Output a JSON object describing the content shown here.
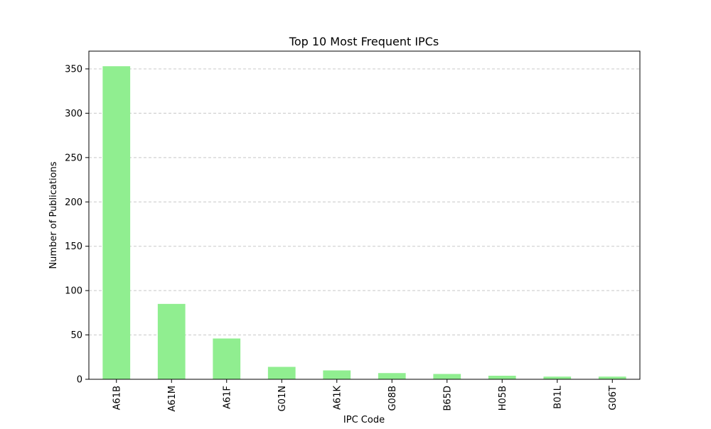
{
  "chart_data": {
    "type": "bar",
    "title": "Top 10 Most Frequent IPCs",
    "xlabel": "IPC Code",
    "ylabel": "Number of Publications",
    "categories": [
      "A61B",
      "A61M",
      "A61F",
      "G01N",
      "A61K",
      "G08B",
      "B65D",
      "H05B",
      "B01L",
      "G06T"
    ],
    "values": [
      353,
      85,
      46,
      14,
      10,
      7,
      6,
      4,
      3,
      3
    ],
    "ylim": [
      0,
      370
    ],
    "yticks": [
      0,
      50,
      100,
      150,
      200,
      250,
      300,
      350
    ],
    "grid": "horizontal dashed",
    "colors": {
      "bar": "#90ee90",
      "grid": "#c8c8c8",
      "axis": "#000000"
    }
  }
}
